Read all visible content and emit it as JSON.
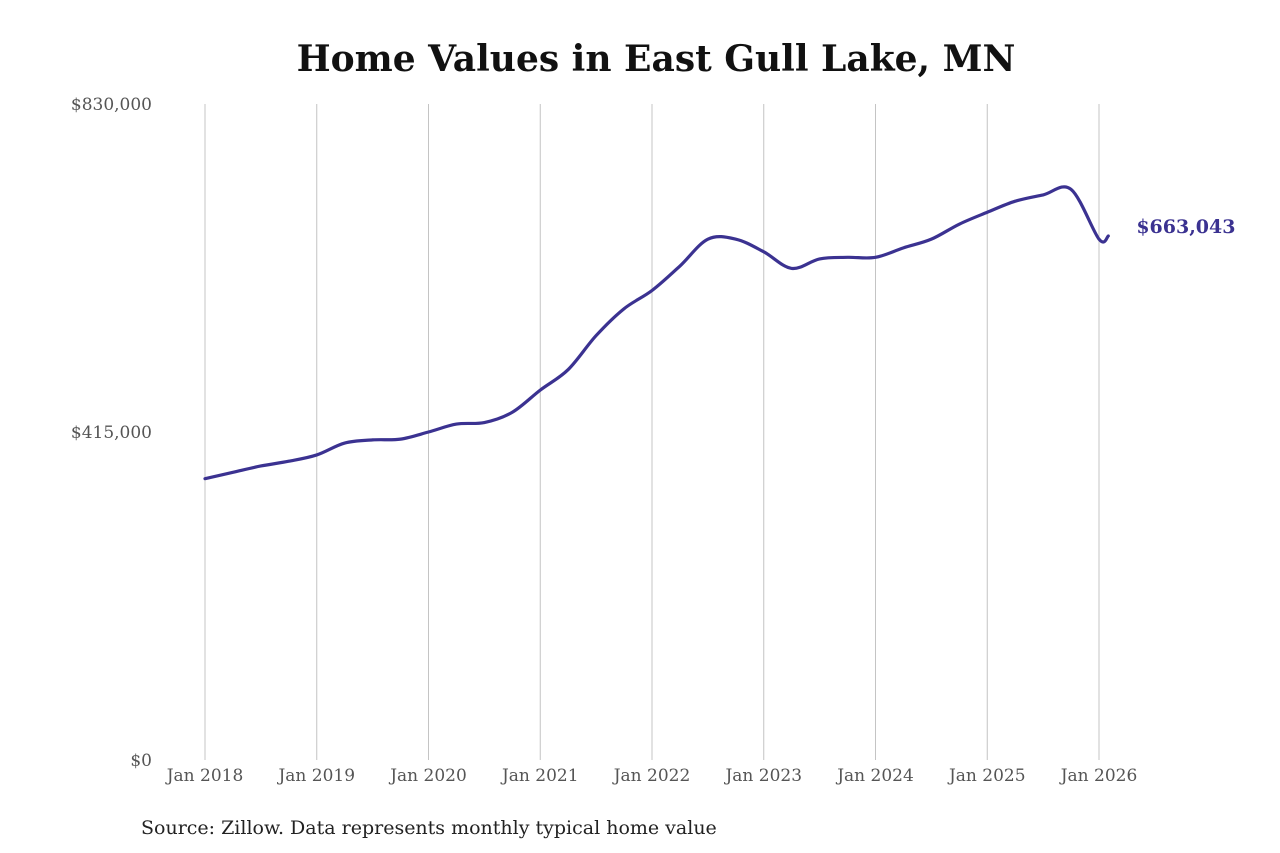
{
  "chart_data": {
    "type": "line",
    "title": "Home Values in East Gull Lake, MN",
    "xlabel": "",
    "ylabel": "",
    "ylim": [
      0,
      830000
    ],
    "xlim": [
      "2018-01",
      "2026-02"
    ],
    "y_ticks": [
      {
        "value": 0,
        "label": "$0"
      },
      {
        "value": 415000,
        "label": "$415,000"
      },
      {
        "value": 830000,
        "label": "$830,000"
      }
    ],
    "x_ticks": [
      {
        "date": "2018-01",
        "label": "Jan 2018"
      },
      {
        "date": "2019-01",
        "label": "Jan 2019"
      },
      {
        "date": "2020-01",
        "label": "Jan 2020"
      },
      {
        "date": "2021-01",
        "label": "Jan 2021"
      },
      {
        "date": "2022-01",
        "label": "Jan 2022"
      },
      {
        "date": "2023-01",
        "label": "Jan 2023"
      },
      {
        "date": "2024-01",
        "label": "Jan 2024"
      },
      {
        "date": "2025-01",
        "label": "Jan 2025"
      },
      {
        "date": "2026-01",
        "label": "Jan 2026"
      }
    ],
    "grid": {
      "vertical": true,
      "horizontal": false
    },
    "legend": "none",
    "series": [
      {
        "color": "#3b3291",
        "x": [
          "2018-01",
          "2018-04",
          "2018-07",
          "2018-10",
          "2019-01",
          "2019-04",
          "2019-07",
          "2019-10",
          "2020-01",
          "2020-04",
          "2020-07",
          "2020-10",
          "2021-01",
          "2021-04",
          "2021-07",
          "2021-10",
          "2022-01",
          "2022-04",
          "2022-07",
          "2022-10",
          "2023-01",
          "2023-04",
          "2023-07",
          "2023-10",
          "2024-01",
          "2024-04",
          "2024-07",
          "2024-10",
          "2025-01",
          "2025-04",
          "2025-07",
          "2025-10",
          "2026-01",
          "2026-02"
        ],
        "values": [
          356000,
          364000,
          372000,
          378000,
          386000,
          401000,
          405000,
          406000,
          415000,
          425000,
          427000,
          440000,
          468000,
          494000,
          537000,
          571000,
          594000,
          625000,
          659000,
          659000,
          643000,
          622000,
          634000,
          636000,
          636000,
          648000,
          659000,
          678000,
          693000,
          707000,
          715000,
          722000,
          659000,
          663043
        ]
      }
    ],
    "end_label": "$663,043"
  },
  "source_note": "Source: Zillow. Data represents monthly typical home value"
}
